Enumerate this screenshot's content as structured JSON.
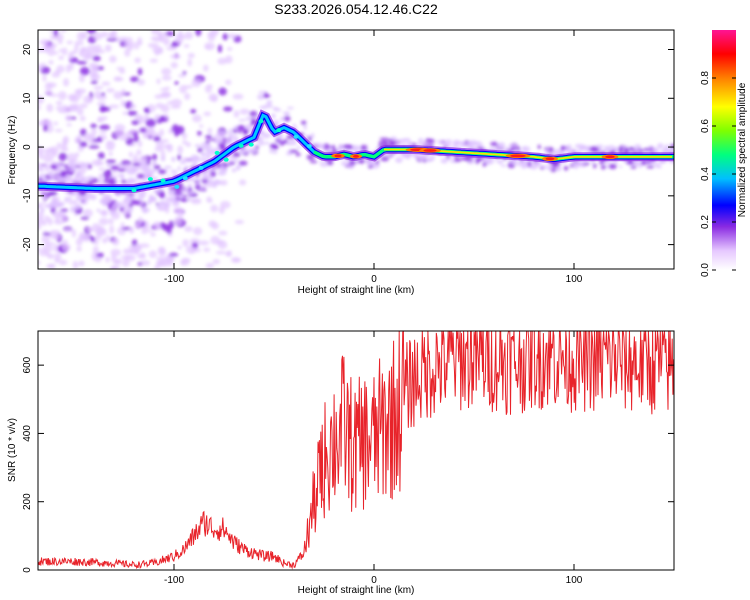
{
  "title": "S233.2026.054.12.46.C22",
  "chart_data": [
    {
      "type": "heatmap",
      "xlabel": "Height of straight line (km)",
      "ylabel": "Frequency (Hz)",
      "xlim": [
        -168,
        150
      ],
      "ylim": [
        -25,
        24
      ],
      "xticks": [
        -100,
        0,
        100
      ],
      "yticks": [
        -20,
        -10,
        0,
        10,
        20
      ],
      "colorbar": {
        "label": "Normalized spectral amplitude",
        "range": [
          0,
          1
        ],
        "ticks": [
          "0.0",
          "0.2",
          "0.4",
          "0.6",
          "0.8"
        ],
        "colors": [
          "#ffffff",
          "#e6c8ff",
          "#8a2be2",
          "#0000ff",
          "#00bfff",
          "#00ff7f",
          "#7fff00",
          "#ffff00",
          "#ff7f00",
          "#ff0000",
          "#ff1493"
        ]
      },
      "ridge": {
        "x": [
          -168,
          -140,
          -120,
          -100,
          -90,
          -80,
          -70,
          -60,
          -55,
          -50,
          -45,
          -40,
          -35,
          -30,
          -25,
          -20,
          -15,
          -10,
          -5,
          0,
          5,
          10,
          20,
          40,
          60,
          80,
          90,
          100,
          120,
          150
        ],
        "y": [
          -8,
          -8.5,
          -8.5,
          -7,
          -5,
          -3,
          0,
          2,
          7,
          3,
          4,
          3,
          1,
          -1,
          -2,
          -2,
          -1.5,
          -2,
          -1.5,
          -2,
          -0.5,
          -0.5,
          -0.5,
          -1,
          -1.5,
          -2,
          -2.5,
          -2,
          -2,
          -2
        ]
      }
    },
    {
      "type": "line",
      "xlabel": "Height of straight line (km)",
      "ylabel": "SNR (10 * v/v)",
      "xlim": [
        -168,
        150
      ],
      "ylim": [
        0,
        700
      ],
      "xticks": [
        -100,
        0,
        100
      ],
      "yticks": [
        0,
        200,
        400,
        600
      ],
      "color": "#e8232a",
      "series": [
        {
          "name": "SNR",
          "x": [
            -168,
            -150,
            -130,
            -120,
            -110,
            -100,
            -95,
            -90,
            -85,
            -80,
            -75,
            -70,
            -65,
            -60,
            -55,
            -50,
            -45,
            -40,
            -35,
            -30,
            -25,
            -20,
            -15,
            -10,
            -5,
            0,
            5,
            10,
            15,
            20,
            25,
            30,
            40,
            50,
            60,
            70,
            80,
            90,
            100,
            110,
            120,
            130,
            140,
            150
          ],
          "values": [
            25,
            25,
            20,
            15,
            20,
            40,
            60,
            100,
            140,
            120,
            120,
            80,
            60,
            50,
            40,
            40,
            20,
            15,
            50,
            200,
            320,
            380,
            420,
            350,
            380,
            380,
            420,
            450,
            520,
            560,
            580,
            600,
            620,
            630,
            620,
            610,
            630,
            630,
            620,
            620,
            620,
            610,
            610,
            600
          ]
        }
      ]
    }
  ]
}
